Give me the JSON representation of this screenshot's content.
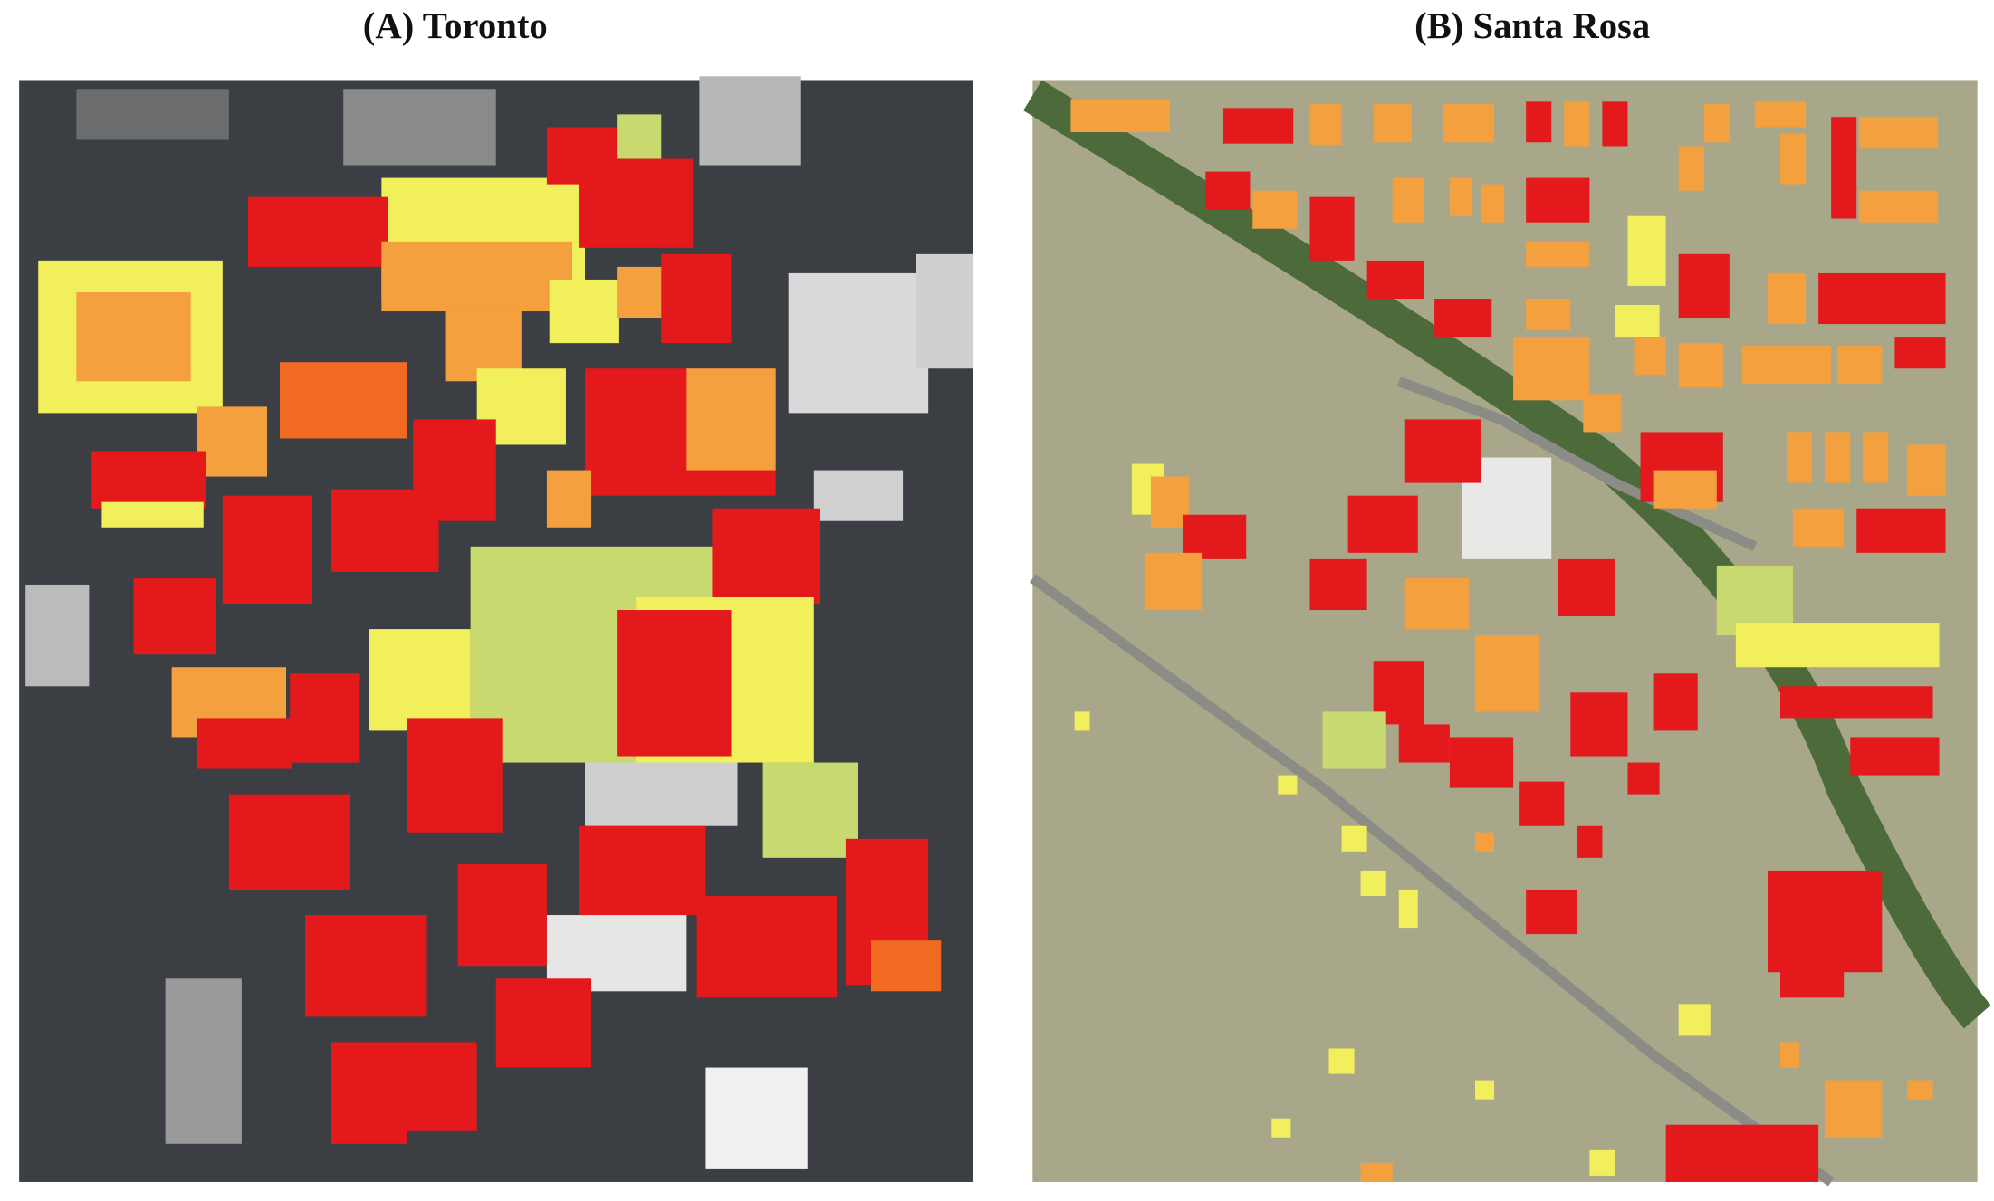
{
  "panels": [
    {
      "title": "(A) Toronto"
    },
    {
      "title": "(B) Santa Rosa"
    }
  ]
}
